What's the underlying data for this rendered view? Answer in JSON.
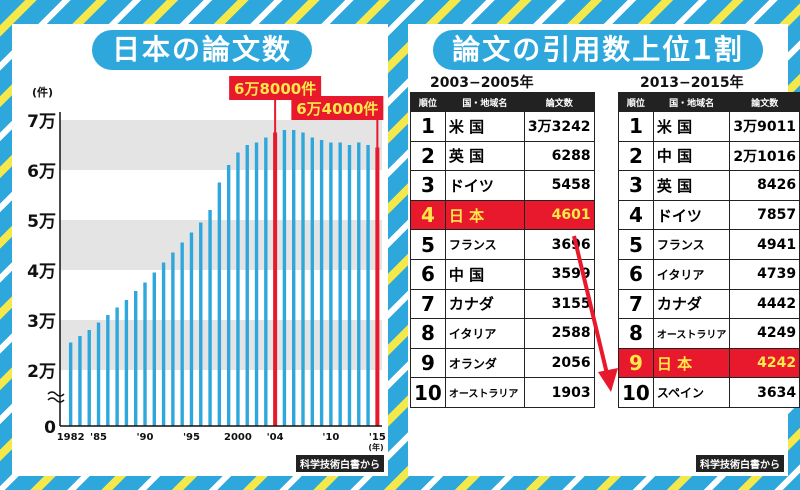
{
  "left": {
    "title": "日本の論文数",
    "source": "科学技術白書から",
    "callout_peak": "6万8000件",
    "callout_latest": "6万4000件"
  },
  "right": {
    "title": "論文の引用数上位1割",
    "source": "科学技術白書から",
    "headers": {
      "rank": "順位",
      "country": "国・地域名",
      "count": "論文数"
    },
    "tables": [
      {
        "period": "2003−2005年",
        "rows": [
          {
            "rank": "1",
            "country": "米 国",
            "count": "3万3242",
            "highlight": false
          },
          {
            "rank": "2",
            "country": "英 国",
            "count": "6288",
            "highlight": false
          },
          {
            "rank": "3",
            "country": "ドイツ",
            "count": "5458",
            "highlight": false
          },
          {
            "rank": "4",
            "country": "日 本",
            "count": "4601",
            "highlight": true
          },
          {
            "rank": "5",
            "country": "フランス",
            "count": "3696",
            "highlight": false
          },
          {
            "rank": "6",
            "country": "中 国",
            "count": "3599",
            "highlight": false
          },
          {
            "rank": "7",
            "country": "カナダ",
            "count": "3155",
            "highlight": false
          },
          {
            "rank": "8",
            "country": "イタリア",
            "count": "2588",
            "highlight": false
          },
          {
            "rank": "9",
            "country": "オランダ",
            "count": "2056",
            "highlight": false
          },
          {
            "rank": "10",
            "country": "オーストラリア",
            "count": "1903",
            "highlight": false
          }
        ]
      },
      {
        "period": "2013−2015年",
        "rows": [
          {
            "rank": "1",
            "country": "米 国",
            "count": "3万9011",
            "highlight": false
          },
          {
            "rank": "2",
            "country": "中 国",
            "count": "2万1016",
            "highlight": false
          },
          {
            "rank": "3",
            "country": "英 国",
            "count": "8426",
            "highlight": false
          },
          {
            "rank": "4",
            "country": "ドイツ",
            "count": "7857",
            "highlight": false
          },
          {
            "rank": "5",
            "country": "フランス",
            "count": "4941",
            "highlight": false
          },
          {
            "rank": "6",
            "country": "イタリア",
            "count": "4739",
            "highlight": false
          },
          {
            "rank": "7",
            "country": "カナダ",
            "count": "4442",
            "highlight": false
          },
          {
            "rank": "8",
            "country": "オーストラリア",
            "count": "4249",
            "highlight": false
          },
          {
            "rank": "9",
            "country": "日 本",
            "count": "4242",
            "highlight": true
          },
          {
            "rank": "10",
            "country": "スペイン",
            "count": "3634",
            "highlight": false
          }
        ]
      }
    ]
  },
  "colors": {
    "bar": "#2ea8dc",
    "highlight": "#e8192c",
    "highlight_text": "#ffe94a"
  },
  "chart_data": {
    "type": "bar",
    "title": "日本の論文数",
    "ylabel": "(件)",
    "xlabel": "(年)",
    "y_tick_labels": [
      "0",
      "2万",
      "3万",
      "4万",
      "5万",
      "6万",
      "7万"
    ],
    "y_ticks": [
      0,
      20000,
      30000,
      40000,
      50000,
      60000,
      70000
    ],
    "axis_break": "between 0 and 2万",
    "ylim": [
      20000,
      70000
    ],
    "x_tick_labels": [
      "1982",
      "'85",
      "'90",
      "'95",
      "2000",
      "'04",
      "'10",
      "'15"
    ],
    "x_tick_years": [
      1982,
      1985,
      1990,
      1995,
      2000,
      2004,
      2010,
      2015
    ],
    "x": [
      1982,
      1983,
      1984,
      1985,
      1986,
      1987,
      1988,
      1989,
      1990,
      1991,
      1992,
      1993,
      1994,
      1995,
      1996,
      1997,
      1998,
      1999,
      2000,
      2001,
      2002,
      2003,
      2004,
      2005,
      2006,
      2007,
      2008,
      2009,
      2010,
      2011,
      2012,
      2013,
      2014,
      2015
    ],
    "values": [
      25500,
      26800,
      28000,
      29500,
      31000,
      32500,
      34000,
      35800,
      37500,
      39500,
      41500,
      43500,
      45500,
      47500,
      49500,
      52000,
      57500,
      61000,
      63500,
      65000,
      65500,
      66500,
      67500,
      68000,
      68000,
      67500,
      66500,
      66000,
      65500,
      65500,
      65000,
      65500,
      65000,
      64500
    ],
    "highlight_years": [
      2004,
      2015
    ],
    "annotations": [
      {
        "year": 2004,
        "label": "6万8000件"
      },
      {
        "year": 2015,
        "label": "6万4000件"
      }
    ]
  }
}
